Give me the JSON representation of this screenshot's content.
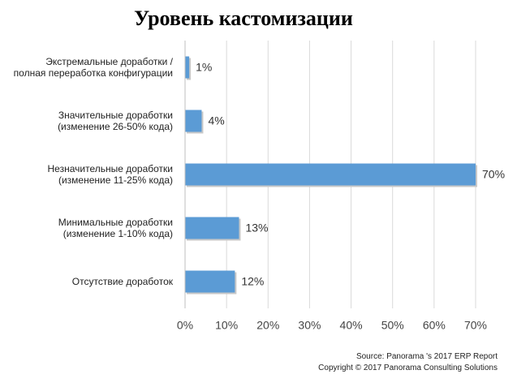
{
  "chart_data": {
    "type": "barh",
    "title": "Уровень кастомизации",
    "categories": [
      "Экстремальные доработки /\nполная переработка конфигурации",
      "Значительные доработки\n(изменение 26-50% кода)",
      "Незначительные доработки\n(изменение 11-25% кода)",
      "Минимальные доработки\n(изменение 1-10% кода)",
      "Отсутствие доработок"
    ],
    "values": [
      1,
      4,
      70,
      13,
      12
    ],
    "value_labels": [
      "1%",
      "4%",
      "70%",
      "13%",
      "12%"
    ],
    "color": "#5b9bd5",
    "xlim": [
      0,
      70
    ],
    "xticks": [
      {
        "value": 0,
        "label": "0%"
      },
      {
        "value": 10,
        "label": "10%"
      },
      {
        "value": 20,
        "label": "20%"
      },
      {
        "value": 30,
        "label": "30%"
      },
      {
        "value": 40,
        "label": "40%"
      },
      {
        "value": 50,
        "label": "50%"
      },
      {
        "value": 60,
        "label": "60%"
      },
      {
        "value": 70,
        "label": "70%"
      }
    ],
    "grid": true,
    "source": "Source: Panorama 's 2017 ERP Report",
    "copyright": "Copyright © 2017 Panorama Consulting Solutions"
  }
}
